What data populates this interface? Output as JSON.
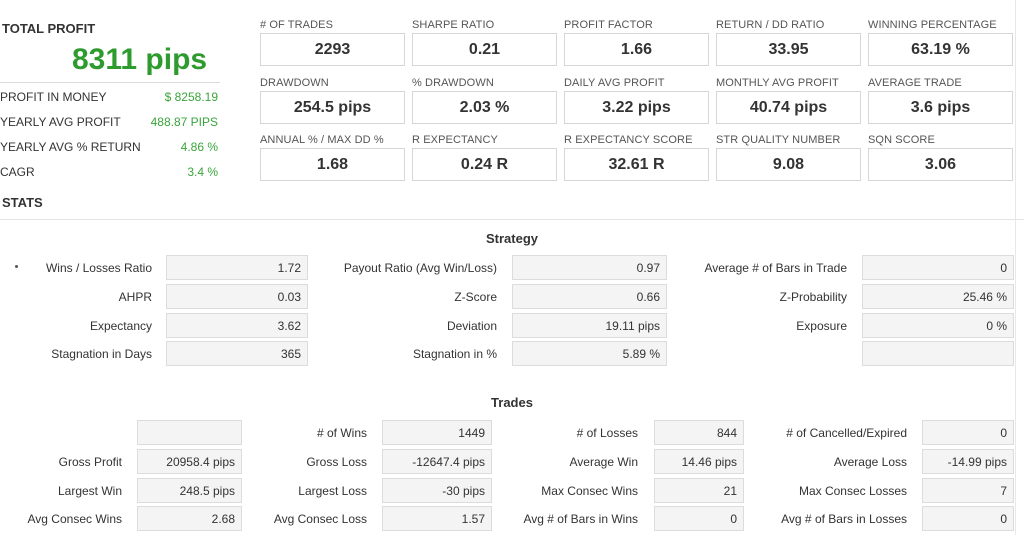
{
  "summary": {
    "total_profit_label": "TOTAL PROFIT",
    "total_profit_value": "8311 pips",
    "rows": [
      {
        "label": "PROFIT IN MONEY",
        "value": "$ 8258.19"
      },
      {
        "label": "YEARLY AVG PROFIT",
        "value": "488.87 PIPS"
      },
      {
        "label": "YEARLY AVG % RETURN",
        "value": "4.86 %"
      },
      {
        "label": "CAGR",
        "value": "3.4 %"
      }
    ],
    "stats_title": "STATS"
  },
  "metrics": [
    {
      "label": "# OF TRADES",
      "value": "2293"
    },
    {
      "label": "SHARPE RATIO",
      "value": "0.21"
    },
    {
      "label": "PROFIT FACTOR",
      "value": "1.66"
    },
    {
      "label": "RETURN / DD RATIO",
      "value": "33.95"
    },
    {
      "label": "WINNING PERCENTAGE",
      "value": "63.19 %"
    },
    {
      "label": "DRAWDOWN",
      "value": "254.5 pips"
    },
    {
      "label": "% DRAWDOWN",
      "value": "2.03 %"
    },
    {
      "label": "DAILY AVG PROFIT",
      "value": "3.22 pips"
    },
    {
      "label": "MONTHLY AVG PROFIT",
      "value": "40.74 pips"
    },
    {
      "label": "AVERAGE TRADE",
      "value": "3.6 pips"
    },
    {
      "label": "ANNUAL % / MAX DD %",
      "value": "1.68"
    },
    {
      "label": "R EXPECTANCY",
      "value": "0.24 R"
    },
    {
      "label": "R EXPECTANCY SCORE",
      "value": "32.61 R"
    },
    {
      "label": "STR QUALITY NUMBER",
      "value": "9.08"
    },
    {
      "label": "SQN SCORE",
      "value": "3.06"
    }
  ],
  "strategy": {
    "title": "Strategy",
    "rows": [
      [
        {
          "label": "Wins / Losses Ratio",
          "value": "1.72"
        },
        {
          "label": "Payout Ratio (Avg Win/Loss)",
          "value": "0.97"
        },
        {
          "label": "Average # of Bars in Trade",
          "value": "0"
        }
      ],
      [
        {
          "label": "AHPR",
          "value": "0.03"
        },
        {
          "label": "Z-Score",
          "value": "0.66"
        },
        {
          "label": "Z-Probability",
          "value": "25.46 %"
        }
      ],
      [
        {
          "label": "Expectancy",
          "value": "3.62"
        },
        {
          "label": "Deviation",
          "value": "19.11 pips"
        },
        {
          "label": "Exposure",
          "value": "0 %"
        }
      ],
      [
        {
          "label": "Stagnation in Days",
          "value": "365"
        },
        {
          "label": "Stagnation in %",
          "value": "5.89 %"
        },
        {
          "label": "",
          "value": ""
        }
      ]
    ]
  },
  "trades": {
    "title": "Trades",
    "rows": [
      [
        {
          "label": "",
          "value": ""
        },
        {
          "label": "# of Wins",
          "value": "1449"
        },
        {
          "label": "# of Losses",
          "value": "844"
        },
        {
          "label": "# of Cancelled/Expired",
          "value": "0"
        }
      ],
      [
        {
          "label": "Gross Profit",
          "value": "20958.4 pips"
        },
        {
          "label": "Gross Loss",
          "value": "-12647.4 pips"
        },
        {
          "label": "Average Win",
          "value": "14.46 pips"
        },
        {
          "label": "Average Loss",
          "value": "-14.99 pips"
        }
      ],
      [
        {
          "label": "Largest Win",
          "value": "248.5 pips"
        },
        {
          "label": "Largest Loss",
          "value": "-30 pips"
        },
        {
          "label": "Max Consec Wins",
          "value": "21"
        },
        {
          "label": "Max Consec Losses",
          "value": "7"
        }
      ],
      [
        {
          "label": "Avg Consec Wins",
          "value": "2.68"
        },
        {
          "label": "Avg Consec Loss",
          "value": "1.57"
        },
        {
          "label": "Avg # of Bars in Wins",
          "value": "0"
        },
        {
          "label": "Avg # of Bars in Losses",
          "value": "0"
        }
      ]
    ]
  }
}
